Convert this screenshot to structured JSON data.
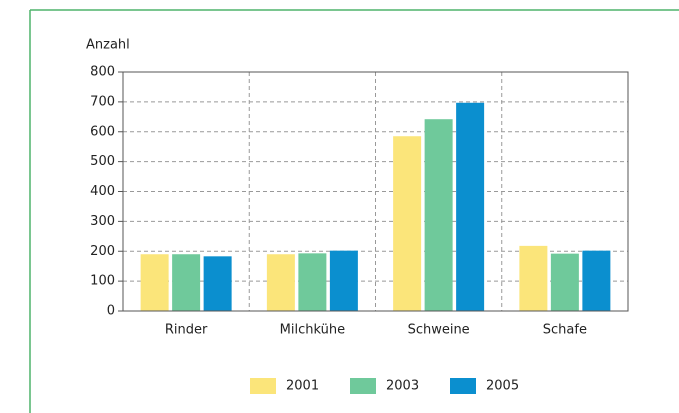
{
  "chart_data": {
    "type": "bar",
    "ylabel": "Anzahl",
    "categories": [
      "Rinder",
      "Milchkühe",
      "Schweine",
      "Schafe"
    ],
    "series": [
      {
        "name": "2001",
        "color": "#fbe57a",
        "values": [
          190,
          190,
          585,
          218
        ]
      },
      {
        "name": "2003",
        "color": "#6fc99b",
        "values": [
          190,
          193,
          642,
          192
        ]
      },
      {
        "name": "2005",
        "color": "#0b8fcf",
        "values": [
          183,
          202,
          697,
          202
        ]
      }
    ],
    "ylim": [
      0,
      800
    ],
    "yticks": [
      0,
      100,
      200,
      300,
      400,
      500,
      600,
      700,
      800
    ],
    "grid": true,
    "legend": "bottom"
  }
}
